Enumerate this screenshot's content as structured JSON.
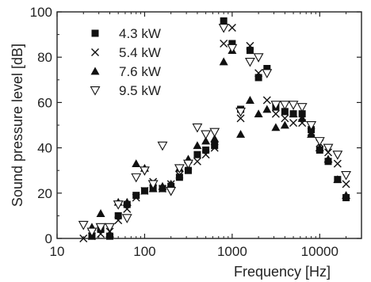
{
  "chart_data": {
    "type": "scatter",
    "title": "",
    "xlabel": "Frequency [Hz]",
    "ylabel": "Sound pressure level [dB]",
    "xscale": "log",
    "xlim": [
      10,
      30000
    ],
    "ylim": [
      0,
      100
    ],
    "xticks": [
      10,
      100,
      1000,
      10000
    ],
    "xtick_labels": [
      "10",
      "100",
      "1000",
      "10000"
    ],
    "yticks": [
      0,
      20,
      40,
      60,
      80,
      100
    ],
    "ytick_labels": [
      "0",
      "20",
      "40",
      "60",
      "80",
      "100"
    ],
    "grid": false,
    "legend_position": "top-left",
    "series": [
      {
        "name": "4.3 kW",
        "marker": "square",
        "color": "#111111",
        "x": [
          25,
          31.5,
          40,
          50,
          63,
          80,
          100,
          125,
          160,
          200,
          250,
          315,
          400,
          500,
          630,
          800,
          1000,
          1250,
          1600,
          2000,
          2500,
          3150,
          4000,
          5000,
          6300,
          8000,
          10000,
          12500,
          16000,
          20000
        ],
        "y": [
          1,
          4,
          1,
          10,
          15,
          19,
          21,
          22,
          22,
          23,
          27,
          30,
          37,
          39,
          41,
          96,
          86,
          57,
          83,
          71,
          75,
          58,
          56,
          55,
          55,
          48,
          39,
          34,
          26,
          18
        ]
      },
      {
        "name": "5.4 kW",
        "marker": "x",
        "color": "#111111",
        "x": [
          20,
          25,
          31.5,
          40,
          50,
          63,
          80,
          100,
          125,
          160,
          200,
          250,
          315,
          400,
          500,
          630,
          800,
          1000,
          1250,
          1600,
          2000,
          2500,
          3150,
          4000,
          5000,
          6300,
          8000,
          10000,
          12500,
          16000,
          20000
        ],
        "y": [
          0,
          1,
          2,
          3,
          8,
          13,
          18,
          21,
          25,
          22,
          24,
          28,
          32,
          34,
          37,
          40,
          86,
          93,
          53,
          85,
          73,
          61,
          55,
          53,
          51,
          51,
          47,
          42,
          38,
          33,
          24
        ]
      },
      {
        "name": "7.6 kW",
        "marker": "triangle-up",
        "color": "#111111",
        "x": [
          25,
          31.5,
          40,
          50,
          63,
          80,
          100,
          125,
          160,
          200,
          250,
          315,
          400,
          500,
          630,
          800,
          1000,
          1250,
          1600,
          2000,
          2500,
          3150,
          4000,
          5000,
          6300,
          8000,
          10000,
          12500,
          16000,
          20000
        ],
        "y": [
          5,
          11,
          2,
          16,
          16,
          33,
          31,
          22,
          23,
          24,
          31,
          35,
          41,
          43,
          44,
          78,
          83,
          46,
          61,
          55,
          57,
          49,
          50,
          55,
          53,
          46,
          40,
          35,
          26,
          19
        ]
      },
      {
        "name": "9.5 kW",
        "marker": "triangle-down",
        "color": "#111111",
        "x": [
          20,
          25,
          31.5,
          40,
          50,
          63,
          80,
          100,
          125,
          160,
          200,
          250,
          315,
          400,
          500,
          630,
          800,
          1000,
          1250,
          1600,
          2000,
          2500,
          3150,
          4000,
          5000,
          6300,
          8000,
          10000,
          12500,
          16000,
          20000
        ],
        "y": [
          6,
          3,
          5,
          5,
          15,
          9,
          27,
          30,
          24,
          41,
          21,
          31,
          33,
          49,
          46,
          47,
          93,
          84,
          56,
          78,
          80,
          73,
          59,
          59,
          59,
          58,
          50,
          43,
          40,
          37,
          28
        ]
      }
    ]
  }
}
